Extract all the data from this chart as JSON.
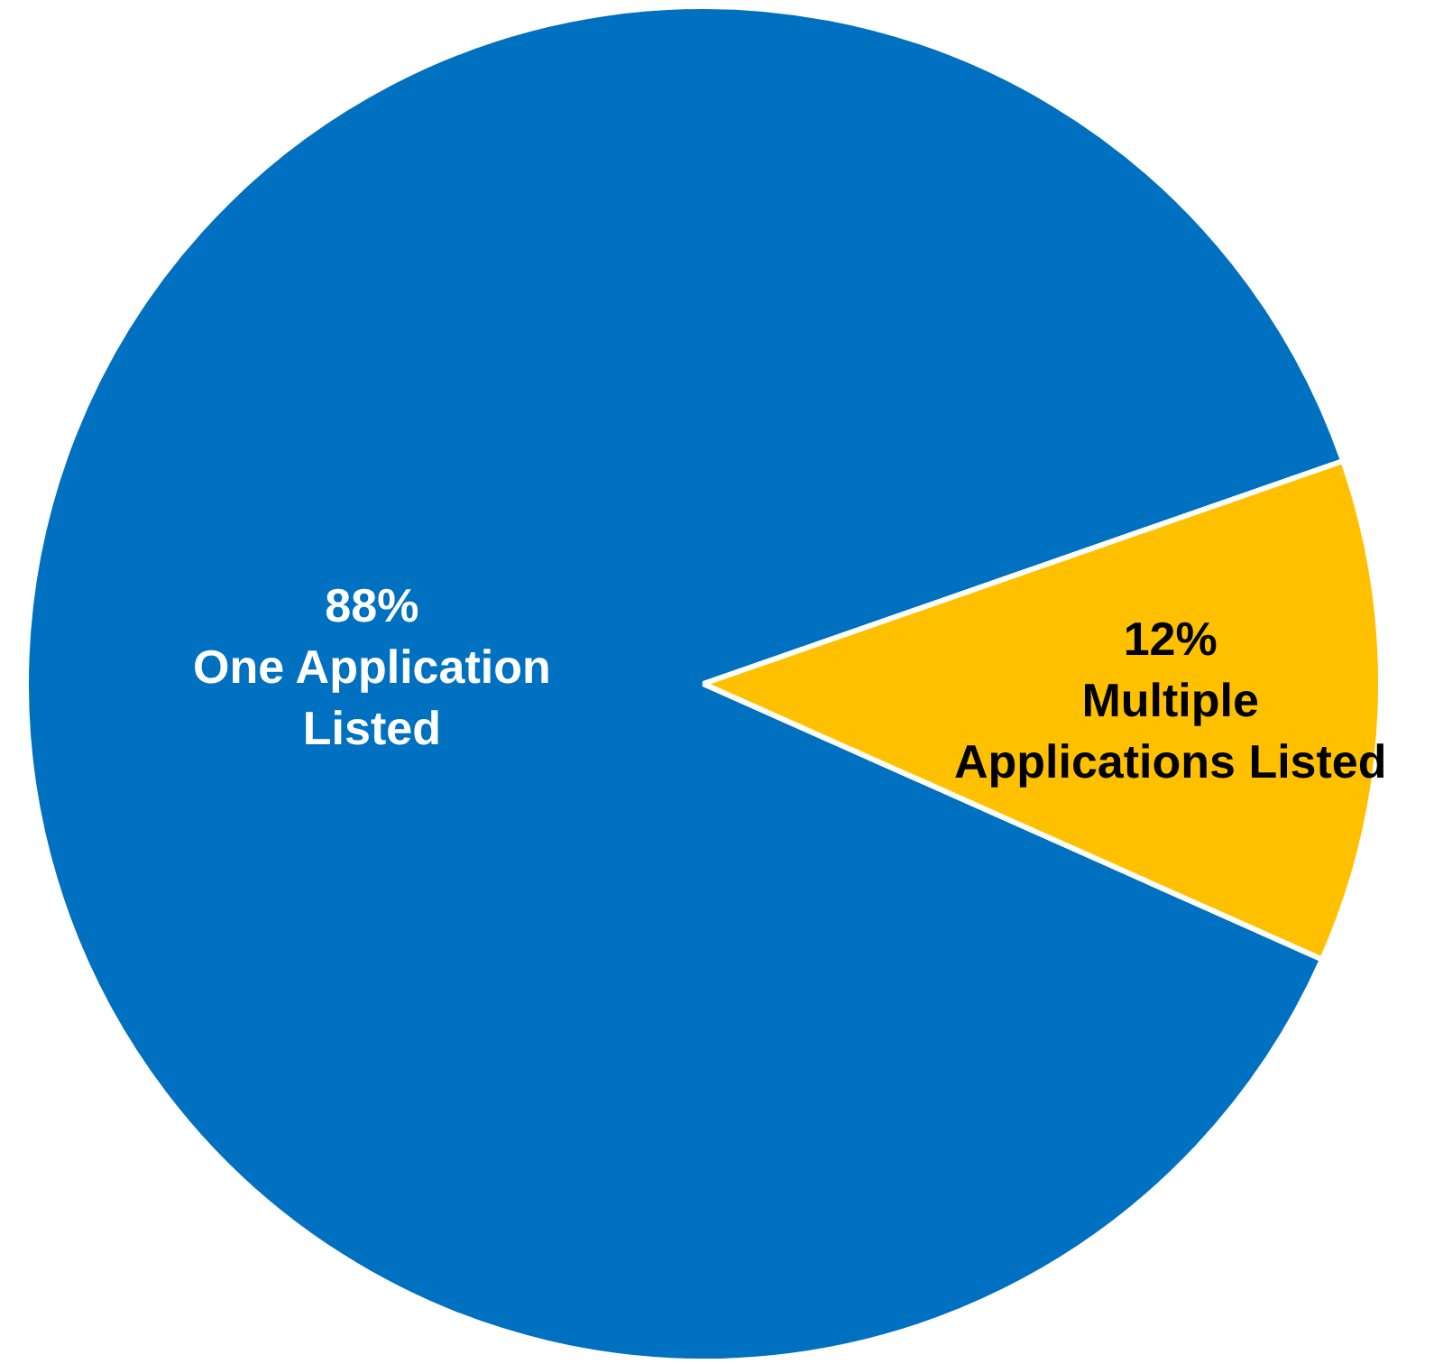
{
  "chart_data": {
    "type": "pie",
    "categories": [
      "One Application Listed",
      "Multiple Applications Listed"
    ],
    "values": [
      88,
      12
    ],
    "colors": [
      "#0070c0",
      "#ffc000"
    ],
    "value_labels": [
      "88%",
      "12%"
    ],
    "legend": false
  }
}
